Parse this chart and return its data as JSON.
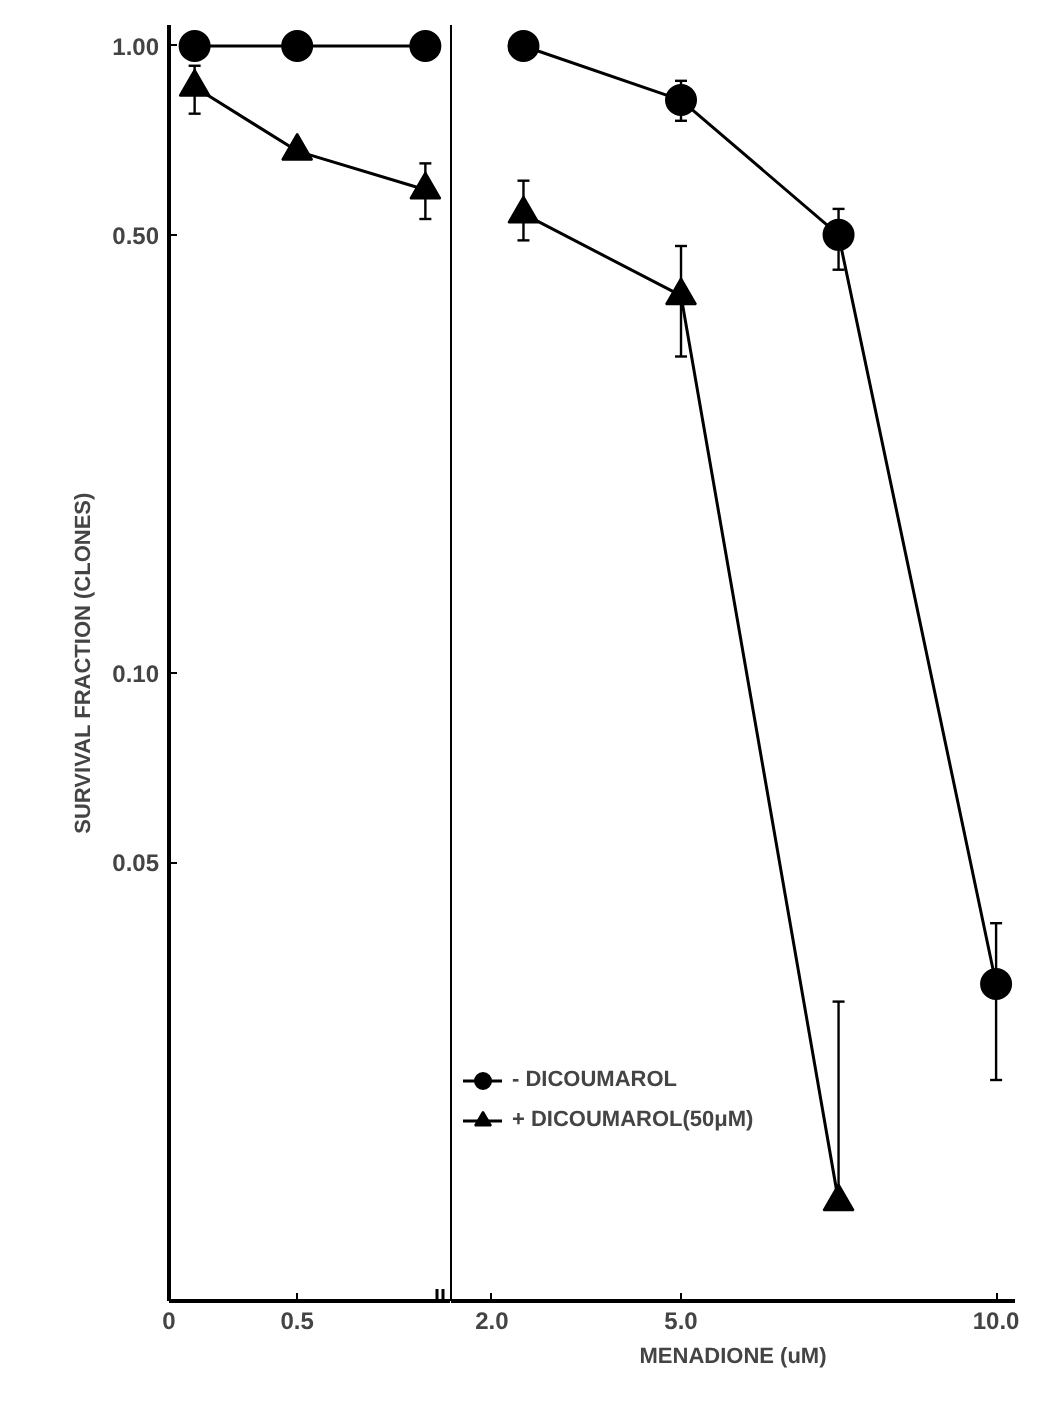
{
  "chart_data": [
    {
      "type": "line",
      "ylabel": "SURVIVAL FRACTION (CLONES)",
      "x": [
        0.1,
        0.5,
        1.0
      ],
      "series": [
        {
          "color": "#000000",
          "marker": "circle",
          "values": [
            1.0,
            1.0,
            1.0
          ],
          "errors": [
            null,
            null,
            null
          ]
        },
        {
          "color": "#000000",
          "marker": "triangle",
          "values": [
            0.86,
            0.68,
            0.59
          ],
          "errors": [
            [
              0.78,
              0.93
            ],
            null,
            [
              0.53,
              0.65
            ]
          ]
        }
      ],
      "log": "y",
      "xlim": [
        0,
        1.1
      ],
      "ylim": [
        0.01,
        1.08
      ],
      "xticks": [
        {
          "value": 0,
          "label": "0"
        },
        {
          "value": 0.5,
          "label": "0.5"
        }
      ],
      "yticks": [
        {
          "value": 1.0,
          "label": "1.00"
        },
        {
          "value": 0.5,
          "label": "0.50"
        },
        {
          "value": 0.1,
          "label": "0.10"
        },
        {
          "value": 0.05,
          "label": "0.05"
        }
      ],
      "grid": false,
      "line_style": "solid"
    },
    {
      "type": "line",
      "xlabel": "MENADIONE (uM)",
      "x": [
        2.5,
        5.0,
        7.5,
        10.0
      ],
      "series": [
        {
          "name": "- DICOUMAROL",
          "color": "#000000",
          "marker": "circle",
          "values": [
            1.0,
            0.82,
            0.5,
            0.032
          ],
          "errors": [
            null,
            [
              0.76,
              0.88
            ],
            [
              0.44,
              0.55
            ],
            [
              0.0225,
              0.04
            ]
          ]
        },
        {
          "name": "+ DICOUMAROL(50μM)",
          "color": "#000000",
          "marker": "triangle",
          "x": [
            2.5,
            5.0,
            7.5
          ],
          "values": [
            0.54,
            0.4,
            0.0144
          ],
          "errors": [
            [
              0.49,
              0.61
            ],
            [
              0.32,
              0.48
            ],
            [
              0.0144,
              0.03
            ]
          ]
        }
      ],
      "log": "y",
      "xlim": [
        1.35,
        10.3
      ],
      "ylim": [
        0.01,
        1.08
      ],
      "xticks": [
        {
          "value": 2.0,
          "label": "2.0"
        },
        {
          "value": 5.0,
          "label": "5.0"
        },
        {
          "value": 10.0,
          "label": "10.0"
        }
      ],
      "tick_labels": "x",
      "grid": false,
      "legend": "bottom left",
      "line_style": "solid"
    }
  ]
}
